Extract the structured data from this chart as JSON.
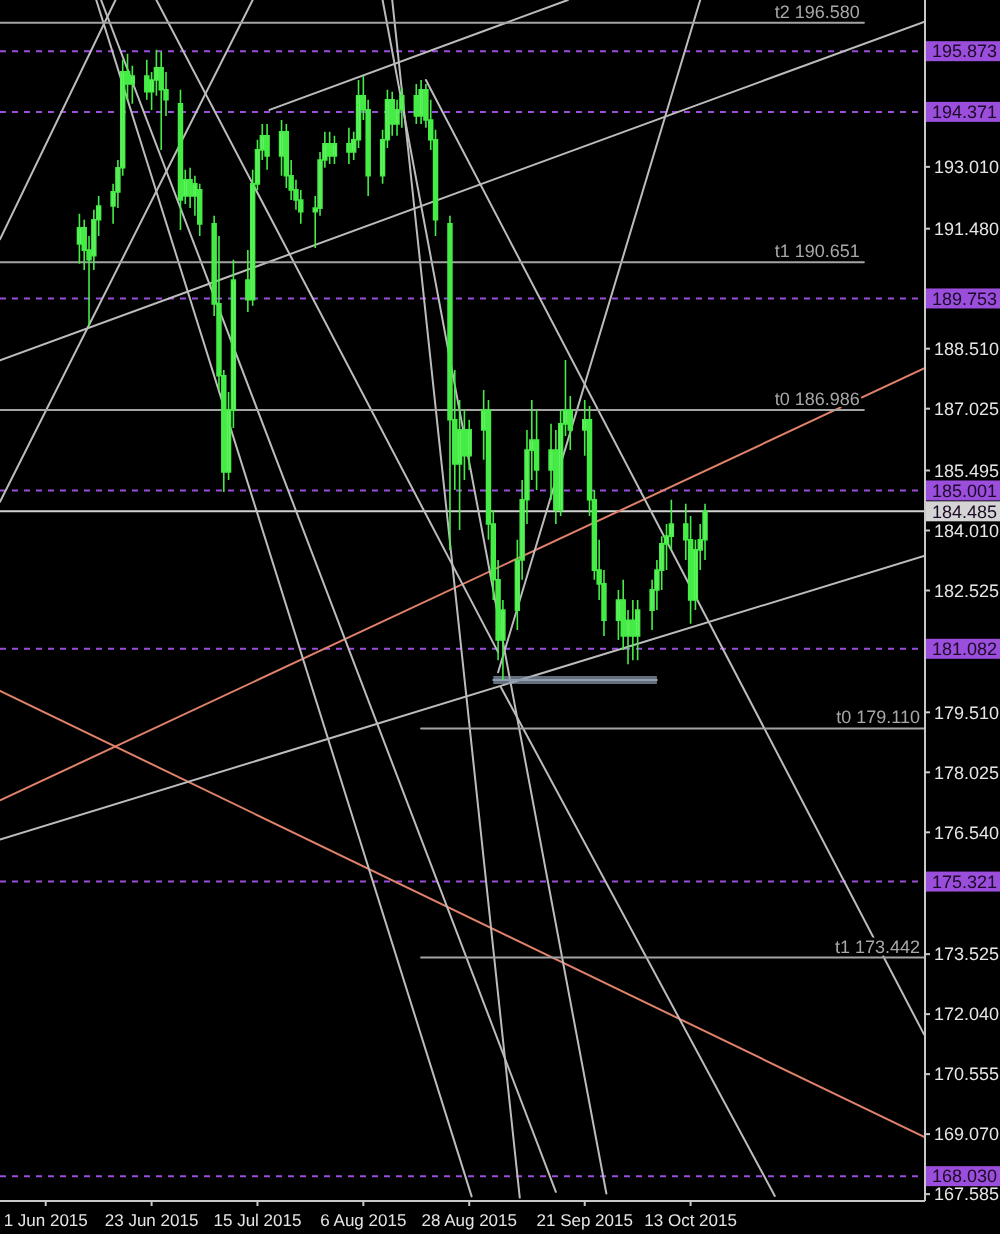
{
  "chart_data": {
    "type": "candlestick",
    "color": "#46ec46",
    "x": [
      "2015-06-08",
      "2015-06-09",
      "2015-06-10",
      "2015-06-11",
      "2015-06-12",
      "2015-06-15",
      "2015-06-16",
      "2015-06-17",
      "2015-06-18",
      "2015-06-19",
      "2015-06-22",
      "2015-06-23",
      "2015-06-24",
      "2015-06-25",
      "2015-06-26",
      "2015-06-29",
      "2015-06-30",
      "2015-07-01",
      "2015-07-02",
      "2015-07-03",
      "2015-07-06",
      "2015-07-07",
      "2015-07-08",
      "2015-07-09",
      "2015-07-10",
      "2015-07-13",
      "2015-07-14",
      "2015-07-15",
      "2015-07-16",
      "2015-07-17",
      "2015-07-20",
      "2015-07-21",
      "2015-07-22",
      "2015-07-23",
      "2015-07-24",
      "2015-07-27",
      "2015-07-28",
      "2015-07-29",
      "2015-07-30",
      "2015-07-31",
      "2015-08-03",
      "2015-08-04",
      "2015-08-05",
      "2015-08-06",
      "2015-08-07",
      "2015-08-10",
      "2015-08-11",
      "2015-08-12",
      "2015-08-13",
      "2015-08-14",
      "2015-08-17",
      "2015-08-18",
      "2015-08-19",
      "2015-08-20",
      "2015-08-21",
      "2015-08-24",
      "2015-08-25",
      "2015-08-26",
      "2015-08-27",
      "2015-08-28",
      "2015-08-31",
      "2015-09-01",
      "2015-09-02",
      "2015-09-03",
      "2015-09-04",
      "2015-09-07",
      "2015-09-08",
      "2015-09-09",
      "2015-09-10",
      "2015-09-11",
      "2015-09-14",
      "2015-09-15",
      "2015-09-16",
      "2015-09-17",
      "2015-09-18",
      "2015-09-21",
      "2015-09-22",
      "2015-09-23",
      "2015-09-24",
      "2015-09-25",
      "2015-09-28",
      "2015-09-29",
      "2015-09-30",
      "2015-10-01",
      "2015-10-02",
      "2015-10-05",
      "2015-10-06",
      "2015-10-07",
      "2015-10-08",
      "2015-10-09",
      "2015-10-12",
      "2015-10-13",
      "2015-10-14",
      "2015-10-15",
      "2015-10-16"
    ],
    "ohlc": [
      [
        191.1,
        191.85,
        190.61,
        191.5
      ],
      [
        191.5,
        191.7,
        190.46,
        190.95
      ],
      [
        190.95,
        191.3,
        189.07,
        190.71
      ],
      [
        190.81,
        191.95,
        190.46,
        191.7
      ],
      [
        191.7,
        192.29,
        191.3,
        192.04
      ],
      [
        192.04,
        192.59,
        191.6,
        192.39
      ],
      [
        192.39,
        193.18,
        191.99,
        192.99
      ],
      [
        192.99,
        195.66,
        192.79,
        195.36
      ],
      [
        195.36,
        195.81,
        194.67,
        195.06
      ],
      [
        195.06,
        195.51,
        194.57,
        195.26
      ],
      [
        195.26,
        195.66,
        194.67,
        194.87
      ],
      [
        194.87,
        195.36,
        194.42,
        195.16
      ],
      [
        195.16,
        195.91,
        194.77,
        195.46
      ],
      [
        195.46,
        195.86,
        193.43,
        194.92
      ],
      [
        194.92,
        195.36,
        194.27,
        194.67
      ],
      [
        194.57,
        194.92,
        191.45,
        192.19
      ],
      [
        192.29,
        192.94,
        192.09,
        192.69
      ],
      [
        192.69,
        192.99,
        191.99,
        192.29
      ],
      [
        192.29,
        192.79,
        191.8,
        192.59
      ],
      [
        192.44,
        192.59,
        191.3,
        191.6
      ],
      [
        191.6,
        191.8,
        189.32,
        189.62
      ],
      [
        189.62,
        191.3,
        187.49,
        187.84
      ],
      [
        187.84,
        187.98,
        184.96,
        185.46
      ],
      [
        185.46,
        187.44,
        185.26,
        186.99
      ],
      [
        186.99,
        190.71,
        186.55,
        190.21
      ],
      [
        190.21,
        190.95,
        189.42,
        189.72
      ],
      [
        189.72,
        192.94,
        189.57,
        192.59
      ],
      [
        192.59,
        193.68,
        192.44,
        193.43
      ],
      [
        193.43,
        194.07,
        193.18,
        193.78
      ],
      [
        193.78,
        194.07,
        192.94,
        193.28
      ],
      [
        193.28,
        194.17,
        192.79,
        193.88
      ],
      [
        193.88,
        194.07,
        192.49,
        192.79
      ],
      [
        192.79,
        193.18,
        192.19,
        192.44
      ],
      [
        192.44,
        192.69,
        191.95,
        192.19
      ],
      [
        192.19,
        192.44,
        191.6,
        191.9
      ],
      [
        191.9,
        192.29,
        191.0,
        191.99
      ],
      [
        191.99,
        193.38,
        191.8,
        193.18
      ],
      [
        193.18,
        193.88,
        192.99,
        193.58
      ],
      [
        193.58,
        193.88,
        193.08,
        193.28
      ],
      [
        193.28,
        193.78,
        193.08,
        193.58
      ],
      [
        193.58,
        193.98,
        193.08,
        193.38
      ],
      [
        193.38,
        193.88,
        193.18,
        193.68
      ],
      [
        193.68,
        195.16,
        193.48,
        194.77
      ],
      [
        194.77,
        195.26,
        194.17,
        194.42
      ],
      [
        194.42,
        194.67,
        192.29,
        192.79
      ],
      [
        192.79,
        193.93,
        192.59,
        193.68
      ],
      [
        193.68,
        194.92,
        193.48,
        194.67
      ],
      [
        194.67,
        194.87,
        193.78,
        194.07
      ],
      [
        194.07,
        194.67,
        193.78,
        194.42
      ],
      [
        194.42,
        194.97,
        193.98,
        194.77
      ],
      [
        194.77,
        195.06,
        194.07,
        194.27
      ],
      [
        194.27,
        195.16,
        194.07,
        194.92
      ],
      [
        194.92,
        195.06,
        193.98,
        194.17
      ],
      [
        194.17,
        194.67,
        193.43,
        193.68
      ],
      [
        193.68,
        193.93,
        191.3,
        191.7
      ],
      [
        191.6,
        191.8,
        183.53,
        186.75
      ],
      [
        186.75,
        187.98,
        185.01,
        185.66
      ],
      [
        185.66,
        187.24,
        184.02,
        186.5
      ],
      [
        186.5,
        186.99,
        185.26,
        185.86
      ],
      [
        185.86,
        186.75,
        185.51,
        186.5
      ],
      [
        186.5,
        187.49,
        185.76,
        186.99
      ],
      [
        186.99,
        187.24,
        183.78,
        184.17
      ],
      [
        184.17,
        184.52,
        182.29,
        182.79
      ],
      [
        182.79,
        183.28,
        180.8,
        181.3
      ],
      [
        181.3,
        182.29,
        180.31,
        182.04
      ],
      [
        182.04,
        183.78,
        181.55,
        183.28
      ],
      [
        183.28,
        185.26,
        182.79,
        184.77
      ],
      [
        184.77,
        186.5,
        184.17,
        186.0
      ],
      [
        186.0,
        187.24,
        185.26,
        186.25
      ],
      [
        186.25,
        186.99,
        185.01,
        185.51
      ],
      [
        185.51,
        186.65,
        184.77,
        186.0
      ],
      [
        186.0,
        186.5,
        184.17,
        184.52
      ],
      [
        184.52,
        186.99,
        184.37,
        186.65
      ],
      [
        186.65,
        188.23,
        186.35,
        186.99
      ],
      [
        186.99,
        187.34,
        186.0,
        186.5
      ],
      [
        186.5,
        187.24,
        185.86,
        186.75
      ],
      [
        186.75,
        187.09,
        184.37,
        184.77
      ],
      [
        184.77,
        185.01,
        182.79,
        183.03
      ],
      [
        183.03,
        183.78,
        182.29,
        182.69
      ],
      [
        182.69,
        183.03,
        181.4,
        181.79
      ],
      [
        181.79,
        182.54,
        181.3,
        182.29
      ],
      [
        182.29,
        182.79,
        181.05,
        181.4
      ],
      [
        181.4,
        182.04,
        180.7,
        181.79
      ],
      [
        181.79,
        182.29,
        180.8,
        181.4
      ],
      [
        181.4,
        182.29,
        180.8,
        182.04
      ],
      [
        182.04,
        182.79,
        181.55,
        182.54
      ],
      [
        182.54,
        183.28,
        182.04,
        183.03
      ],
      [
        183.03,
        183.87,
        182.54,
        183.68
      ],
      [
        183.68,
        184.17,
        183.03,
        183.87
      ],
      [
        183.87,
        184.77,
        183.53,
        184.17
      ],
      [
        184.17,
        184.67,
        183.28,
        183.78
      ],
      [
        183.78,
        184.37,
        181.7,
        182.29
      ],
      [
        182.29,
        183.78,
        182.04,
        183.53
      ],
      [
        183.53,
        184.17,
        183.03,
        183.78
      ],
      [
        183.78,
        184.67,
        183.28,
        184.485
      ]
    ],
    "series": [
      {
        "type": "line",
        "x": [
          "2015-05-22T12:00",
          "2015-11-30T12:00"
        ],
        "values": [
          177.33,
          188.02
        ],
        "color": "#e0826a"
      },
      {
        "type": "line",
        "x": [
          "2015-05-22T12:00",
          "2015-11-30T12:00"
        ],
        "values": [
          180.04,
          169.0
        ],
        "color": "#e0826a"
      },
      {
        "type": "line",
        "x": [
          "2015-05-22T12:00",
          "2015-11-30T12:00"
        ],
        "values": [
          188.22,
          196.6
        ],
        "color": "#bcbcbc"
      },
      {
        "type": "line",
        "x": [
          "2015-07-17T12:00",
          "2015-09-17T12:00"
        ],
        "values": [
          194.42,
          197.14
        ],
        "color": "#bcbcbc"
      },
      {
        "type": "line",
        "x": [
          "2015-05-22T12:00",
          "2015-11-30T12:00"
        ],
        "values": [
          176.36,
          183.38
        ],
        "color": "#bcbcbc"
      },
      {
        "type": "line",
        "x": [
          "2015-05-22T12:00",
          "2015-06-15T12:00"
        ],
        "values": [
          191.22,
          197.14
        ],
        "color": "#bcbcbc"
      },
      {
        "type": "line",
        "x": [
          "2015-05-22T12:00",
          "2015-07-14"
        ],
        "values": [
          184.72,
          197.14
        ],
        "color": "#bcbcbc"
      },
      {
        "type": "line",
        "x": [
          "2015-06-11T12:00",
          "2015-08-28T12:00"
        ],
        "values": [
          197.14,
          167.53
        ],
        "color": "#bcbcbc"
      },
      {
        "type": "line",
        "x": [
          "2015-06-12T12:00",
          "2015-09-15"
        ],
        "values": [
          197.14,
          167.64
        ],
        "color": "#bcbcbc"
      },
      {
        "type": "line",
        "x": [
          "2015-06-24",
          "2015-09-03"
        ],
        "values": [
          197.14,
          181.0
        ],
        "color": "#bcbcbc"
      },
      {
        "type": "line",
        "x": [
          "2015-08-12",
          "2015-09-07T12:00"
        ],
        "values": [
          197.14,
          167.5
        ],
        "color": "#bcbcbc"
      },
      {
        "type": "line",
        "x": [
          "2015-08-10",
          "2015-09-25T12:00"
        ],
        "values": [
          197.14,
          167.6
        ],
        "color": "#bcbcbc"
      },
      {
        "type": "line",
        "x": [
          "2015-08-19",
          "2015-11-30T12:00"
        ],
        "values": [
          195.16,
          171.54
        ],
        "color": "#bcbcbc"
      },
      {
        "type": "line",
        "x": [
          "2015-09-03",
          "2015-10-15"
        ],
        "values": [
          180.5,
          197.14
        ],
        "color": "#bcbcbc"
      },
      {
        "type": "line",
        "x": [
          "2015-09-03T12:00",
          "2015-10-30T12:00"
        ],
        "values": [
          180.15,
          167.54
        ],
        "color": "#bcbcbc"
      },
      {
        "type": "line",
        "x": [
          "2015-05-22T12:00",
          "2015-11-18"
        ],
        "values": [
          196.58,
          196.58
        ],
        "color": "#a4a4a4"
      },
      {
        "type": "line",
        "x": [
          "2015-05-22T12:00",
          "2015-11-18"
        ],
        "values": [
          190.65,
          190.65
        ],
        "color": "#a4a4a4"
      },
      {
        "type": "line",
        "x": [
          "2015-05-22T12:00",
          "2015-11-18"
        ],
        "values": [
          186.99,
          186.99
        ],
        "color": "#a4a4a4"
      },
      {
        "type": "line",
        "x": [
          "2015-08-18",
          "2015-11-30T12:00"
        ],
        "values": [
          179.11,
          179.11
        ],
        "color": "#a4a4a4"
      },
      {
        "type": "line",
        "x": [
          "2015-08-18",
          "2015-11-30T12:00"
        ],
        "values": [
          173.44,
          173.44
        ],
        "color": "#a4a4a4"
      },
      {
        "type": "line",
        "x": [
          "2015-09-02",
          "2015-10-06"
        ],
        "values": [
          180.31,
          180.31
        ],
        "lower": [
          180.21,
          180.21
        ],
        "upper": [
          180.41,
          180.41
        ],
        "color": "#8d9db0"
      }
    ],
    "annotations": [
      {
        "text": "t2 196.580",
        "x": "2015-11-18",
        "y": 196.58
      },
      {
        "text": "t1 190.651",
        "x": "2015-11-18",
        "y": 190.65
      },
      {
        "text": "t0 186.986",
        "x": "2015-11-18",
        "y": 186.99
      },
      {
        "text": "t0 179.110",
        "x": "2015-11-30T12:00",
        "y": 179.11
      },
      {
        "text": "t1 173.442",
        "x": "2015-11-30T12:00",
        "y": 173.44
      }
    ],
    "ref_lines": [
      {
        "axis": "y",
        "value": 195.873,
        "label": "195.873",
        "color": "#9b4ddb",
        "line_style": "dashed"
      },
      {
        "axis": "y",
        "value": 194.371,
        "label": "194.371",
        "color": "#9b4ddb",
        "line_style": "dashed"
      },
      {
        "axis": "y",
        "value": 189.753,
        "label": "189.753",
        "color": "#9b4ddb",
        "line_style": "dashed"
      },
      {
        "axis": "y",
        "value": 185.001,
        "label": "185.001",
        "color": "#9b4ddb",
        "line_style": "dashed"
      },
      {
        "axis": "y",
        "value": 181.082,
        "label": "181.082",
        "color": "#9b4ddb",
        "line_style": "dashed"
      },
      {
        "axis": "y",
        "value": 175.321,
        "label": "175.321",
        "color": "#9b4ddb",
        "line_style": "dashed"
      },
      {
        "axis": "y",
        "value": 168.03,
        "label": "168.030",
        "color": "#9b4ddb",
        "line_style": "dashed"
      },
      {
        "axis": "y",
        "value": 184.485,
        "label": "184.485",
        "color": "#d4d4d4",
        "line_style": "solid"
      }
    ],
    "xlim": [
      "2015-05-22T12:00",
      "2015-11-30T12:00"
    ],
    "xticks": [
      {
        "value": "2015-06-01",
        "label": "1 Jun 2015"
      },
      {
        "value": "2015-06-23",
        "label": "23 Jun 2015"
      },
      {
        "value": "2015-07-15",
        "label": "15 Jul 2015"
      },
      {
        "value": "2015-08-06",
        "label": "6 Aug 2015"
      },
      {
        "value": "2015-08-28",
        "label": "28 Aug 2015"
      },
      {
        "value": "2015-09-21",
        "label": "21 Sep 2015"
      },
      {
        "value": "2015-10-13",
        "label": "13 Oct 2015"
      }
    ],
    "ylim": [
      167.44,
      197.14
    ],
    "yticks": [
      167.585,
      {
        "value": 169.07,
        "label": "169.070"
      },
      170.555,
      {
        "value": 172.04,
        "label": "172.040"
      },
      173.525,
      {
        "value": 176.54,
        "label": "176.540"
      },
      178.025,
      {
        "value": 179.51,
        "label": "179.510"
      },
      182.525,
      {
        "value": 184.01,
        "label": "184.010"
      },
      185.495,
      187.025,
      {
        "value": 188.51,
        "label": "188.510"
      },
      {
        "value": 191.48,
        "label": "191.480"
      },
      {
        "value": 193.01,
        "label": "193.010"
      }
    ]
  }
}
